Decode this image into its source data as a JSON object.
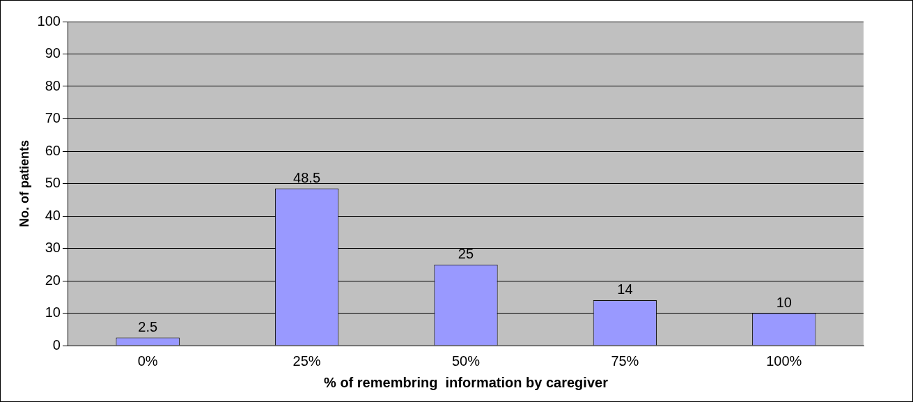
{
  "chart_data": {
    "type": "bar",
    "xlabel": "% of remembring  information by caregiver",
    "ylabel": "No. of patients",
    "categories": [
      "0%",
      "25%",
      "50%",
      "75%",
      "100%"
    ],
    "values": [
      2.5,
      48.5,
      25,
      14,
      10
    ],
    "color": "#9999ff",
    "ylim": [
      0,
      100
    ],
    "yticks": [
      0,
      10,
      20,
      30,
      40,
      50,
      60,
      70,
      80,
      90,
      100
    ],
    "grid": "y",
    "data_labels": true
  }
}
